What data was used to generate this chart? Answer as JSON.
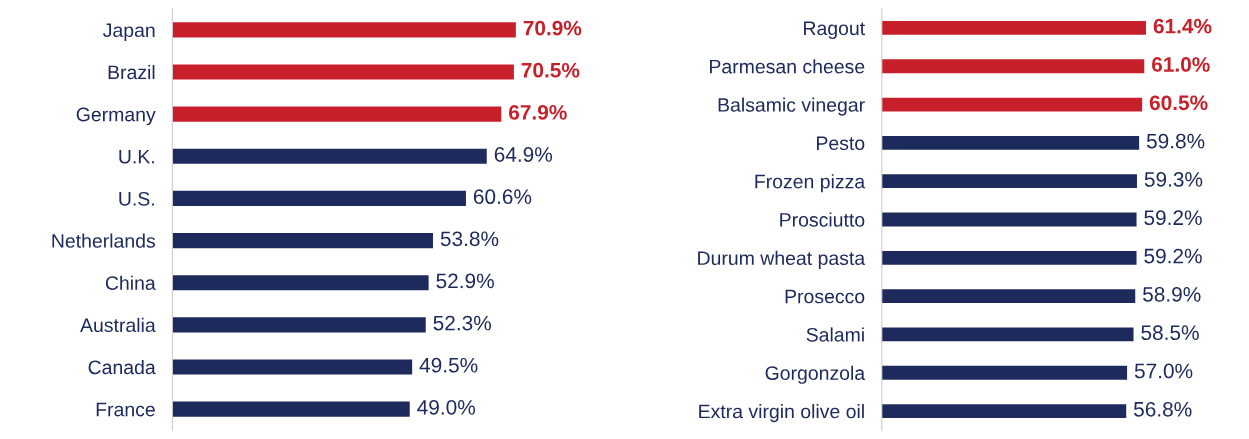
{
  "chart_data": [
    {
      "type": "bar",
      "orientation": "horizontal",
      "data_labels": true,
      "tick_labels": "y",
      "grid": false,
      "legend": false,
      "categories": [
        "Japan",
        "Brazil",
        "Germany",
        "U.K.",
        "U.S.",
        "Netherlands",
        "China",
        "Australia",
        "Canada",
        "France"
      ],
      "values": [
        70.9,
        70.5,
        67.9,
        64.9,
        60.6,
        53.8,
        52.9,
        52.3,
        49.5,
        49.0
      ],
      "value_labels": [
        "70.9%",
        "70.5%",
        "67.9%",
        "64.9%",
        "60.6%",
        "53.8%",
        "52.9%",
        "52.3%",
        "49.5%",
        "49.0%"
      ],
      "colors": [
        "#c8202a",
        "#c8202a",
        "#c8202a",
        "#1f2a5c",
        "#1f2a5c",
        "#1f2a5c",
        "#1f2a5c",
        "#1f2a5c",
        "#1f2a5c",
        "#1f2a5c"
      ]
    },
    {
      "type": "bar",
      "orientation": "horizontal",
      "data_labels": true,
      "tick_labels": "y",
      "grid": false,
      "legend": false,
      "categories": [
        "Ragout",
        "Parmesan cheese",
        "Balsamic vinegar",
        "Pesto",
        "Frozen pizza",
        "Prosciutto",
        "Durum wheat pasta",
        "Prosecco",
        "Salami",
        "Gorgonzola",
        "Extra virgin olive oil"
      ],
      "values": [
        61.4,
        61.0,
        60.5,
        59.8,
        59.3,
        59.2,
        59.2,
        58.9,
        58.5,
        57.0,
        56.8
      ],
      "value_labels": [
        "61.4%",
        "61.0%",
        "60.5%",
        "59.8%",
        "59.3%",
        "59.2%",
        "59.2%",
        "58.9%",
        "58.5%",
        "57.0%",
        "56.8%"
      ],
      "colors": [
        "#c8202a",
        "#c8202a",
        "#c8202a",
        "#1f2a5c",
        "#1f2a5c",
        "#1f2a5c",
        "#1f2a5c",
        "#1f2a5c",
        "#1f2a5c",
        "#1f2a5c",
        "#1f2a5c"
      ]
    }
  ]
}
